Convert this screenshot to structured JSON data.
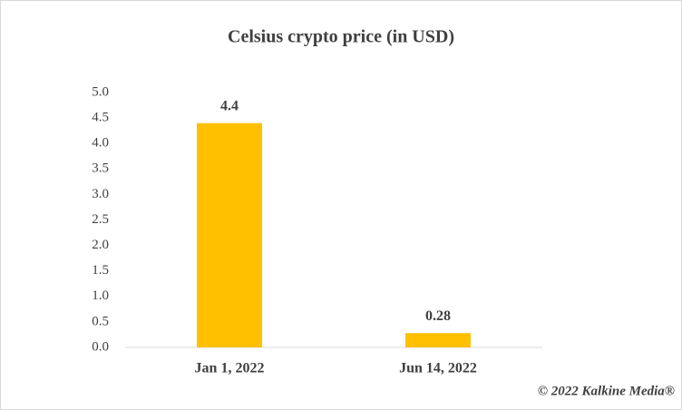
{
  "chart_data": {
    "type": "bar",
    "title": "Celsius crypto price (in USD)",
    "categories": [
      "Jan 1, 2022",
      "Jun 14, 2022"
    ],
    "values": [
      4.4,
      0.28
    ],
    "color": "#ffc000",
    "ylim": [
      0,
      5
    ],
    "yticks": [
      {
        "value": 0,
        "label": "0.0"
      },
      0.5,
      {
        "value": 1,
        "label": "1.0"
      },
      1.5,
      {
        "value": 2,
        "label": "2.0"
      },
      2.5,
      {
        "value": 3,
        "label": "3.0"
      },
      3.5,
      {
        "value": 4,
        "label": "4.0"
      },
      4.5,
      {
        "value": 5,
        "label": "5.0"
      }
    ],
    "grid": false,
    "credit": "© 2022 Kalkine Media®"
  }
}
